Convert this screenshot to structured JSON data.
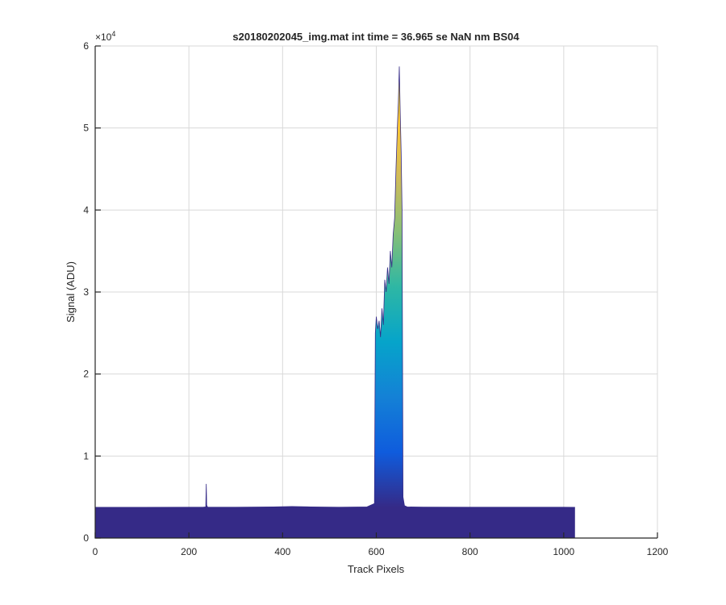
{
  "chart_data": {
    "type": "area",
    "title": "s20180202045_img.mat int time = 36.965 se  NaN nm BS04",
    "xlabel": "Track Pixels",
    "ylabel": "Signal (ADU)",
    "y_exponent_label": "×10",
    "y_exponent_power": "4",
    "xlim": [
      0,
      1200
    ],
    "ylim": [
      0,
      60000
    ],
    "x_ticks": [
      0,
      200,
      400,
      600,
      800,
      1000,
      1200
    ],
    "y_ticks": [
      0,
      1,
      2,
      3,
      4,
      5,
      6
    ],
    "y_tick_scale": 10000,
    "grid": true,
    "colormap": [
      "#352a87",
      "#0f5cdd",
      "#1481d6",
      "#06a4ca",
      "#2eb7a4",
      "#87bf77",
      "#d1bb59",
      "#fec832",
      "#f9fb0e"
    ],
    "series": [
      {
        "x": [
          0,
          100,
          200,
          230,
          236,
          237,
          238,
          240,
          300,
          380,
          420,
          460,
          520,
          580,
          596,
          598,
          600,
          603,
          606,
          609,
          612,
          615,
          618,
          621,
          624,
          627,
          630,
          633,
          636,
          639,
          642,
          645,
          647,
          649,
          651,
          653,
          655,
          657,
          660,
          666,
          700,
          800,
          900,
          1000,
          1024
        ],
        "y": [
          3750,
          3750,
          3760,
          3760,
          3800,
          6600,
          4000,
          3760,
          3760,
          3800,
          3850,
          3800,
          3760,
          3800,
          4200,
          25000,
          27000,
          25500,
          26500,
          24500,
          28000,
          26000,
          31500,
          30000,
          33000,
          31000,
          35000,
          33000,
          37000,
          39000,
          45000,
          50000,
          53000,
          57500,
          52000,
          47000,
          40000,
          5000,
          3950,
          3800,
          3770,
          3760,
          3760,
          3760,
          3750
        ]
      }
    ]
  }
}
